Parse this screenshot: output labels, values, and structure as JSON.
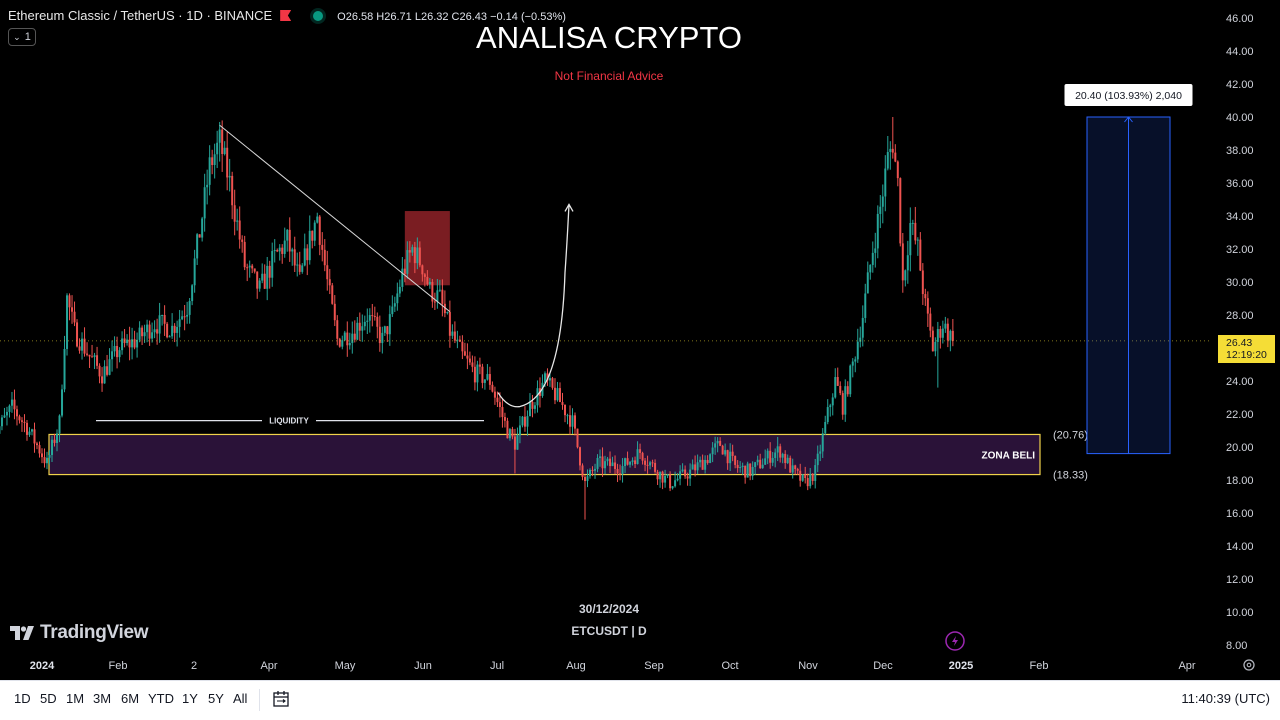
{
  "header": {
    "symbol": "Ethereum Classic / TetherUS · 1D · BINANCE",
    "ohlc": "O26.58 H26.71 L26.32 C26.43 −0.14 (−0.53%)",
    "collapse_label": "1"
  },
  "overlay": {
    "title": "ANALISA CRYPTO",
    "subtitle": "Not Financial Advice",
    "liquidity_label": "LIQUIDITY",
    "zone_label": "ZONA BELI",
    "zone_high_label": "(20.76)",
    "zone_low_label": "(18.33)",
    "measure_label": "20.40 (103.93%) 2,040",
    "date_label": "30/12/2024",
    "ticker_label": "ETCUSDT | D",
    "price_badge": "26.43",
    "countdown_badge": "12:19:20"
  },
  "branding": {
    "logo_text": "TradingView"
  },
  "bottom_bar": {
    "ranges": [
      "1D",
      "5D",
      "1M",
      "3M",
      "6M",
      "YTD",
      "1Y",
      "5Y",
      "All"
    ],
    "clock": "11:40:39 (UTC)"
  },
  "colors": {
    "up": "#26a69a",
    "down": "#ef5350",
    "zone_border": "#f0d24a",
    "zone_fill": "#2a1238",
    "measure": "#2962ff",
    "badge": "#f5dd36",
    "red_box": "#a3272d"
  },
  "chart_data": {
    "type": "candlestick",
    "symbol": "ETCUSDT",
    "interval": "1D",
    "y_axis_ticks": [
      46.0,
      44.0,
      42.0,
      40.0,
      38.0,
      36.0,
      34.0,
      32.0,
      30.0,
      28.0,
      26.0,
      24.0,
      22.0,
      20.0,
      18.0,
      16.0,
      14.0,
      12.0,
      10.0,
      8.0
    ],
    "y_axis_labels": [
      "46.00",
      "44.00",
      "42.00",
      "40.00",
      "38.00",
      "36.00",
      "34.00",
      "32.00",
      "30.00",
      "28.00",
      "26.00",
      "24.00",
      "22.00",
      "20.00",
      "18.00",
      "16.00",
      "14.00",
      "12.00",
      "10.00",
      "8.00"
    ],
    "x_axis_labels": [
      "2024",
      "Feb",
      "2",
      "Apr",
      "May",
      "Jun",
      "Jul",
      "Aug",
      "Sep",
      "Oct",
      "Nov",
      "Dec",
      "2025",
      "Feb",
      "Apr"
    ],
    "x_axis_bold": [
      "2024",
      "2025"
    ],
    "last_price": 26.43,
    "close_trend": [
      [
        "2023-12-12",
        20.5
      ],
      [
        "2023-12-20",
        22.4
      ],
      [
        "2023-12-26",
        21.2
      ],
      [
        "2024-01-03",
        19.0
      ],
      [
        "2024-01-08",
        21.5
      ],
      [
        "2024-01-11",
        29.0
      ],
      [
        "2024-01-14",
        27.0
      ],
      [
        "2024-01-20",
        25.5
      ],
      [
        "2024-01-25",
        24.4
      ],
      [
        "2024-02-01",
        26.0
      ],
      [
        "2024-02-08",
        26.5
      ],
      [
        "2024-02-15",
        27.5
      ],
      [
        "2024-02-22",
        27.2
      ],
      [
        "2024-02-28",
        28.5
      ],
      [
        "2024-03-04",
        33.0
      ],
      [
        "2024-03-08",
        37.0
      ],
      [
        "2024-03-12",
        38.5
      ],
      [
        "2024-03-16",
        36.0
      ],
      [
        "2024-03-22",
        31.0
      ],
      [
        "2024-03-28",
        29.5
      ],
      [
        "2024-04-03",
        31.5
      ],
      [
        "2024-04-08",
        32.5
      ],
      [
        "2024-04-13",
        30.0
      ],
      [
        "2024-04-16",
        32.0
      ],
      [
        "2024-04-20",
        34.0
      ],
      [
        "2024-04-24",
        30.0
      ],
      [
        "2024-04-28",
        26.5
      ],
      [
        "2024-05-04",
        27.0
      ],
      [
        "2024-05-10",
        28.0
      ],
      [
        "2024-05-16",
        26.5
      ],
      [
        "2024-05-20",
        28.0
      ],
      [
        "2024-05-24",
        30.5
      ],
      [
        "2024-05-28",
        32.0
      ],
      [
        "2024-06-01",
        31.0
      ],
      [
        "2024-06-04",
        29.5
      ],
      [
        "2024-06-08",
        29.0
      ],
      [
        "2024-06-12",
        27.0
      ],
      [
        "2024-06-17",
        25.5
      ],
      [
        "2024-06-22",
        24.5
      ],
      [
        "2024-06-28",
        24.0
      ],
      [
        "2024-07-05",
        21.0
      ],
      [
        "2024-07-08",
        20.2
      ],
      [
        "2024-07-14",
        22.5
      ],
      [
        "2024-07-20",
        24.0
      ],
      [
        "2024-07-25",
        23.0
      ],
      [
        "2024-07-31",
        21.5
      ],
      [
        "2024-08-05",
        17.8
      ],
      [
        "2024-08-10",
        19.0
      ],
      [
        "2024-08-20",
        18.8
      ],
      [
        "2024-08-27",
        19.7
      ],
      [
        "2024-09-03",
        18.5
      ],
      [
        "2024-09-08",
        17.8
      ],
      [
        "2024-09-16",
        18.5
      ],
      [
        "2024-09-22",
        19.2
      ],
      [
        "2024-09-28",
        20.2
      ],
      [
        "2024-10-04",
        18.8
      ],
      [
        "2024-10-10",
        18.5
      ],
      [
        "2024-10-18",
        19.5
      ],
      [
        "2024-10-22",
        19.8
      ],
      [
        "2024-10-27",
        18.5
      ],
      [
        "2024-11-01",
        17.8
      ],
      [
        "2024-11-05",
        18.5
      ],
      [
        "2024-11-10",
        22.0
      ],
      [
        "2024-11-13",
        24.0
      ],
      [
        "2024-11-16",
        22.5
      ],
      [
        "2024-11-20",
        25.0
      ],
      [
        "2024-11-24",
        28.0
      ],
      [
        "2024-11-28",
        32.0
      ],
      [
        "2024-12-01",
        34.5
      ],
      [
        "2024-12-04",
        37.5
      ],
      [
        "2024-12-06",
        38.5
      ],
      [
        "2024-12-08",
        36.0
      ],
      [
        "2024-12-10",
        30.0
      ],
      [
        "2024-12-13",
        33.5
      ],
      [
        "2024-12-16",
        32.0
      ],
      [
        "2024-12-19",
        28.5
      ],
      [
        "2024-12-22",
        26.0
      ],
      [
        "2024-12-26",
        27.5
      ],
      [
        "2024-12-30",
        26.43
      ]
    ],
    "notable_extremes": [
      {
        "date": "2024-03-12",
        "high": 39.7
      },
      {
        "date": "2024-07-08",
        "low": 18.4
      },
      {
        "date": "2024-08-05",
        "low": 15.6
      },
      {
        "date": "2024-12-06",
        "high": 40.0
      },
      {
        "date": "2024-12-24",
        "low": 23.6
      }
    ],
    "annotations": {
      "buy_zone": {
        "label": "ZONA BELI",
        "high": 20.76,
        "low": 18.33
      },
      "liquidity_line": {
        "label": "LIQUIDITY",
        "price": 21.6
      },
      "trendline": {
        "from": [
          "2024-03-12",
          39.5
        ],
        "to": [
          "2024-06-12",
          28.2
        ]
      },
      "red_box": {
        "from_date": "2024-05-25",
        "to_date": "2024-06-12",
        "high": 34.3,
        "low": 29.8
      },
      "projection_arrow": {
        "from": [
          "2024-07-08",
          20.0
        ],
        "to": [
          "2024-08-01",
          34.7
        ]
      },
      "price_range": {
        "from": 19.6,
        "to": 40.0,
        "label": "20.40 (103.93%) 2,040"
      }
    }
  }
}
